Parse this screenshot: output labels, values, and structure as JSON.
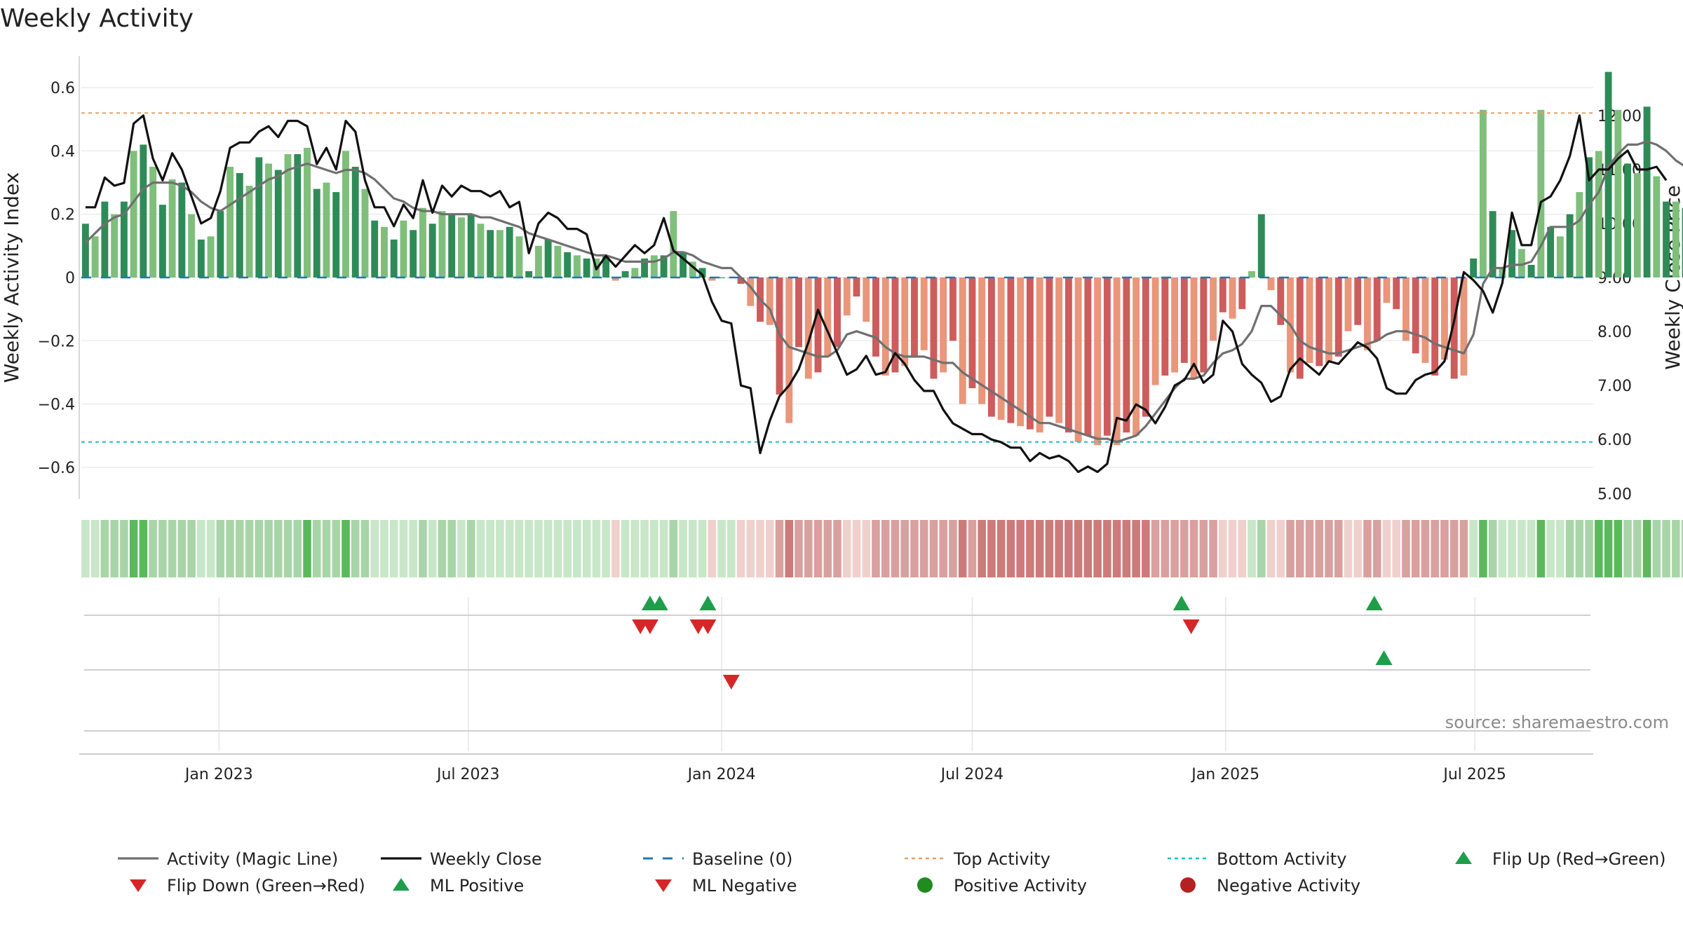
{
  "chart_data": {
    "type": "bar",
    "title": "Weekly Activity",
    "ylabel_left": "Weekly Activity Index",
    "ylabel_right": "Weekly Close Price",
    "ylim_left": [
      -0.7,
      0.7
    ],
    "ylim_right": [
      4.9,
      13.1
    ],
    "left_ticks": [
      0.6,
      0.4,
      0.2,
      0,
      -0.2,
      -0.4,
      -0.6
    ],
    "left_tick_labels": [
      "0.6",
      "0.4",
      "0.2",
      "0",
      "−0.2",
      "−0.4",
      "−0.6"
    ],
    "right_ticks": [
      12,
      11,
      10,
      9,
      8,
      7,
      6,
      5
    ],
    "right_tick_labels": [
      "12.00",
      "11.00",
      "10.00",
      "9.00",
      "8.00",
      "7.00",
      "6.00",
      "5.00"
    ],
    "x_tick_labels": [
      {
        "date": "2023-01-01",
        "label": "Jan 2023"
      },
      {
        "date": "2023-07-01",
        "label": "Jul 2023"
      },
      {
        "date": "2024-01-01",
        "label": "Jan 2024"
      },
      {
        "date": "2024-07-01",
        "label": "Jul 2024"
      },
      {
        "date": "2025-01-01",
        "label": "Jan 2025"
      },
      {
        "date": "2025-07-01",
        "label": "Jul 2025"
      }
    ],
    "x_range": [
      "2022-09-23",
      "2025-09-25"
    ],
    "bar_start_date": "2022-09-26",
    "bar_interval_days": 7,
    "activity": [
      0.17,
      0.13,
      0.24,
      0.2,
      0.24,
      0.4,
      0.42,
      0.35,
      0.23,
      0.31,
      0.3,
      0.2,
      0.12,
      0.13,
      0.21,
      0.35,
      0.33,
      0.29,
      0.38,
      0.36,
      0.34,
      0.39,
      0.39,
      0.41,
      0.28,
      0.3,
      0.27,
      0.4,
      0.35,
      0.28,
      0.18,
      0.16,
      0.12,
      0.18,
      0.15,
      0.22,
      0.17,
      0.21,
      0.2,
      0.19,
      0.2,
      0.17,
      0.15,
      0.15,
      0.16,
      0.13,
      0.02,
      0.1,
      0.12,
      0.1,
      0.08,
      0.07,
      0.06,
      0.06,
      0.07,
      -0.01,
      0.02,
      0.03,
      0.06,
      0.07,
      0.07,
      0.21,
      0.08,
      0.05,
      0.03,
      -0.01,
      0.0,
      0.0,
      -0.02,
      -0.09,
      -0.14,
      -0.15,
      -0.37,
      -0.46,
      -0.22,
      -0.32,
      -0.3,
      -0.25,
      -0.22,
      -0.12,
      -0.06,
      -0.14,
      -0.25,
      -0.31,
      -0.3,
      -0.28,
      -0.25,
      -0.23,
      -0.32,
      -0.3,
      -0.2,
      -0.4,
      -0.35,
      -0.4,
      -0.44,
      -0.45,
      -0.46,
      -0.47,
      -0.48,
      -0.49,
      -0.44,
      -0.46,
      -0.49,
      -0.52,
      -0.5,
      -0.53,
      -0.5,
      -0.53,
      -0.49,
      -0.5,
      -0.44,
      -0.34,
      -0.31,
      -0.3,
      -0.27,
      -0.32,
      -0.3,
      -0.2,
      -0.11,
      -0.13,
      -0.1,
      0.02,
      0.2,
      -0.04,
      -0.15,
      -0.3,
      -0.32,
      -0.27,
      -0.28,
      -0.27,
      -0.25,
      -0.17,
      -0.15,
      -0.23,
      -0.2,
      -0.08,
      -0.1,
      -0.2,
      -0.24,
      -0.27,
      -0.31,
      -0.26,
      -0.32,
      -0.31,
      0.06,
      0.53,
      0.21,
      0.03,
      0.15,
      0.09,
      0.04,
      0.53,
      0.16,
      0.13,
      0.2,
      0.27,
      0.38,
      0.4,
      0.65,
      0.53,
      0.36,
      0.33,
      0.54,
      0.32,
      0.24,
      0.24,
      0.22
    ],
    "bar_colors": {
      "pos_dark": "#2e8b57",
      "pos_light": "#7fbf7b",
      "neg_dark": "#cd5c5c",
      "neg_light": "#e9967a"
    },
    "magic_line": [
      0.11,
      0.14,
      0.17,
      0.19,
      0.2,
      0.24,
      0.28,
      0.3,
      0.3,
      0.3,
      0.29,
      0.27,
      0.24,
      0.22,
      0.21,
      0.23,
      0.25,
      0.27,
      0.29,
      0.31,
      0.32,
      0.34,
      0.35,
      0.36,
      0.35,
      0.34,
      0.33,
      0.34,
      0.34,
      0.33,
      0.31,
      0.28,
      0.25,
      0.24,
      0.22,
      0.21,
      0.21,
      0.2,
      0.2,
      0.2,
      0.2,
      0.19,
      0.19,
      0.18,
      0.17,
      0.16,
      0.14,
      0.13,
      0.12,
      0.11,
      0.1,
      0.09,
      0.08,
      0.07,
      0.07,
      0.06,
      0.05,
      0.05,
      0.05,
      0.05,
      0.06,
      0.08,
      0.08,
      0.07,
      0.05,
      0.04,
      0.03,
      0.03,
      0.0,
      -0.03,
      -0.07,
      -0.1,
      -0.18,
      -0.22,
      -0.23,
      -0.24,
      -0.25,
      -0.25,
      -0.23,
      -0.18,
      -0.17,
      -0.18,
      -0.19,
      -0.22,
      -0.24,
      -0.25,
      -0.25,
      -0.25,
      -0.26,
      -0.27,
      -0.27,
      -0.3,
      -0.32,
      -0.34,
      -0.36,
      -0.38,
      -0.4,
      -0.42,
      -0.44,
      -0.46,
      -0.46,
      -0.47,
      -0.48,
      -0.49,
      -0.5,
      -0.51,
      -0.51,
      -0.52,
      -0.51,
      -0.5,
      -0.47,
      -0.43,
      -0.39,
      -0.35,
      -0.32,
      -0.32,
      -0.31,
      -0.27,
      -0.24,
      -0.23,
      -0.21,
      -0.17,
      -0.09,
      -0.09,
      -0.12,
      -0.15,
      -0.2,
      -0.22,
      -0.23,
      -0.24,
      -0.24,
      -0.23,
      -0.22,
      -0.21,
      -0.2,
      -0.18,
      -0.17,
      -0.17,
      -0.18,
      -0.19,
      -0.21,
      -0.22,
      -0.23,
      -0.24,
      -0.18,
      -0.02,
      0.03,
      0.03,
      0.04,
      0.04,
      0.05,
      0.1,
      0.16,
      0.16,
      0.16,
      0.18,
      0.23,
      0.27,
      0.35,
      0.39,
      0.42,
      0.42,
      0.43,
      0.42,
      0.4,
      0.37,
      0.35
    ],
    "weekly_close": [
      10.3,
      10.3,
      10.85,
      10.7,
      10.75,
      11.85,
      12.0,
      11.2,
      10.8,
      11.3,
      11.0,
      10.5,
      10.0,
      10.1,
      10.6,
      11.4,
      11.5,
      11.5,
      11.7,
      11.8,
      11.6,
      11.9,
      11.9,
      11.8,
      11.1,
      11.4,
      11.0,
      11.9,
      11.7,
      10.8,
      10.3,
      10.3,
      9.95,
      10.35,
      10.1,
      10.8,
      10.2,
      10.7,
      10.5,
      10.7,
      10.6,
      10.6,
      10.5,
      10.6,
      10.3,
      10.4,
      9.45,
      10.0,
      10.2,
      10.1,
      9.9,
      9.9,
      9.8,
      9.15,
      9.4,
      9.2,
      9.4,
      9.6,
      9.45,
      9.6,
      10.1,
      9.5,
      9.35,
      9.2,
      9.05,
      8.55,
      8.2,
      8.15,
      7.0,
      6.95,
      5.75,
      6.35,
      6.8,
      7.0,
      7.3,
      7.8,
      8.4,
      8.0,
      7.6,
      7.2,
      7.3,
      7.55,
      7.2,
      7.25,
      7.6,
      7.4,
      7.1,
      6.9,
      6.9,
      6.55,
      6.3,
      6.2,
      6.1,
      6.1,
      6.0,
      5.95,
      5.85,
      5.85,
      5.6,
      5.75,
      5.65,
      5.7,
      5.6,
      5.4,
      5.5,
      5.4,
      5.55,
      6.4,
      6.35,
      6.65,
      6.55,
      6.3,
      6.6,
      7.0,
      7.1,
      7.4,
      7.05,
      7.2,
      8.2,
      8.0,
      7.4,
      7.2,
      7.05,
      6.7,
      6.8,
      7.3,
      7.5,
      7.35,
      7.2,
      7.45,
      7.4,
      7.6,
      7.8,
      7.7,
      7.5,
      6.95,
      6.85,
      6.85,
      7.1,
      7.2,
      7.25,
      7.45,
      8.2,
      9.1,
      8.95,
      8.75,
      8.35,
      8.9,
      10.2,
      9.6,
      9.6,
      10.4,
      10.5,
      10.8,
      11.25,
      12.0,
      10.8,
      11.0,
      11.0,
      11.2,
      11.35,
      11.0,
      11.0,
      11.05,
      10.8
    ],
    "heatmap_colors": [
      "#a8d5a8",
      "#c8e6c8",
      "#f0d0cc",
      "#d9a0a0",
      "#5cb85c",
      "#cd7a7a"
    ],
    "top_activity": 0.52,
    "bottom_activity": -0.52,
    "events": {
      "flip_up": [
        "2023-11-10",
        "2023-11-17",
        "2023-12-22",
        "2024-11-30",
        "2025-04-19"
      ],
      "flip_down": [
        "2023-11-03",
        "2023-11-10",
        "2023-12-15",
        "2023-12-22",
        "2024-12-07"
      ],
      "ml_positive": [
        "2025-04-26"
      ],
      "ml_negative": [
        "2024-01-08"
      ]
    },
    "legend": [
      {
        "label": "Activity (Magic Line)",
        "symbol": "line",
        "color": "#707070"
      },
      {
        "label": "Weekly Close",
        "symbol": "line",
        "color": "#111111"
      },
      {
        "label": "Baseline (0)",
        "symbol": "dash",
        "color": "#1f77b4"
      },
      {
        "label": "Top Activity",
        "symbol": "dot",
        "color": "#e8a064"
      },
      {
        "label": "Bottom Activity",
        "symbol": "dot",
        "color": "#17becf"
      },
      {
        "label": "Flip Up (Red→Green)",
        "symbol": "triangle-up",
        "color": "#1e9e4a"
      },
      {
        "label": "Flip Down (Green→Red)",
        "symbol": "triangle-down",
        "color": "#d62728"
      },
      {
        "label": "ML Positive",
        "symbol": "triangle-up",
        "color": "#1e9e4a"
      },
      {
        "label": "ML Negative",
        "symbol": "triangle-down",
        "color": "#d62728"
      },
      {
        "label": "Positive Activity",
        "symbol": "circle",
        "color": "#1e8c1e"
      },
      {
        "label": "Negative Activity",
        "symbol": "circle",
        "color": "#b22222"
      }
    ],
    "source": "source: sharemaestro.com"
  }
}
